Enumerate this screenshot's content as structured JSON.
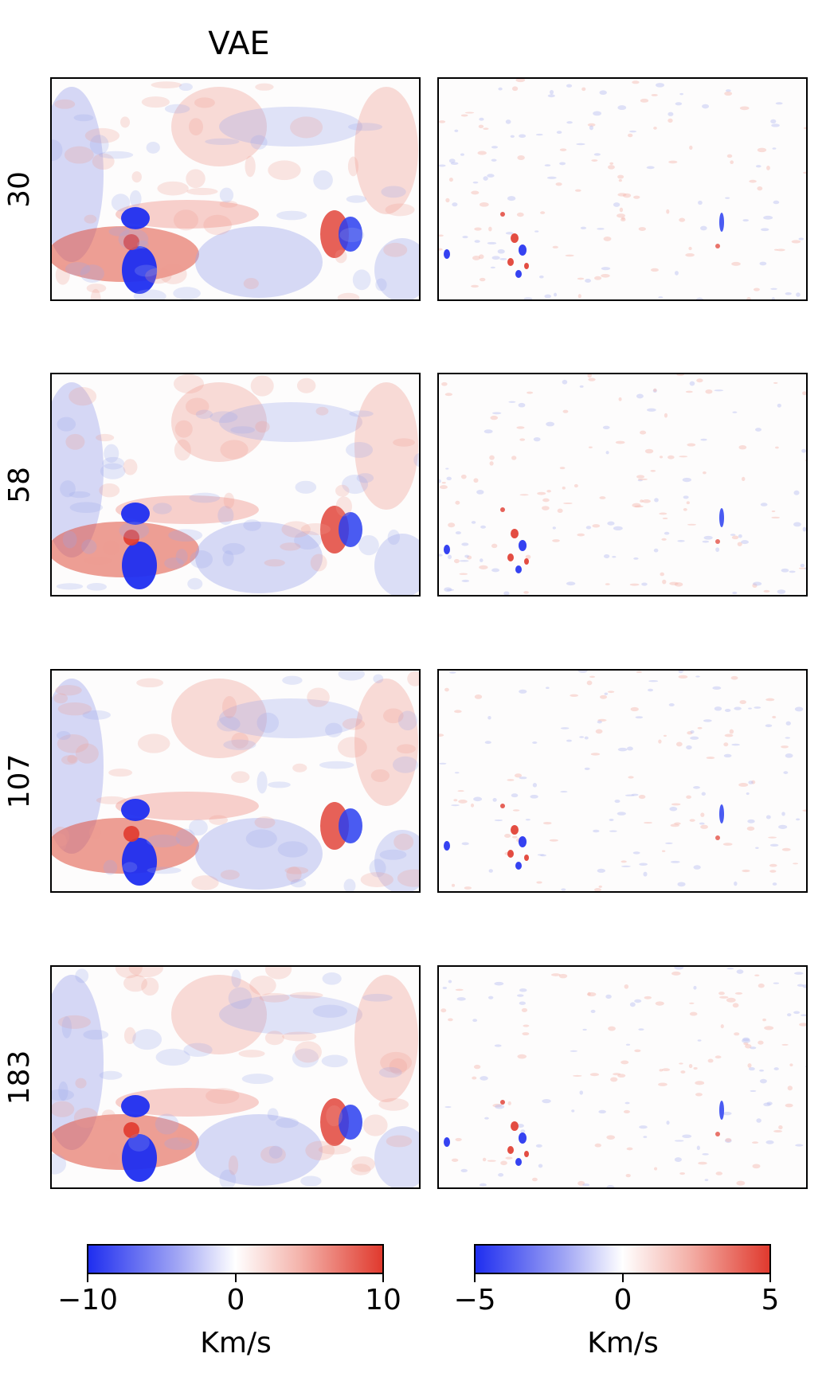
{
  "chart_data": {
    "type": "heatmap",
    "column_titles": [
      "VAE",
      ""
    ],
    "row_labels": [
      "30",
      "58",
      "107",
      "183"
    ],
    "colorbars": [
      {
        "label": "Km/s",
        "ticks": [
          "−10",
          "0",
          "10"
        ],
        "range": [
          -10,
          10
        ],
        "colors": [
          "#1f2ef0",
          "#ffffff",
          "#e03a2e"
        ]
      },
      {
        "label": "Km/s",
        "ticks": [
          "−5",
          "0",
          "5"
        ],
        "range": [
          -5,
          5
        ],
        "colors": [
          "#1f2ef0",
          "#ffffff",
          "#e03a2e"
        ]
      }
    ]
  }
}
